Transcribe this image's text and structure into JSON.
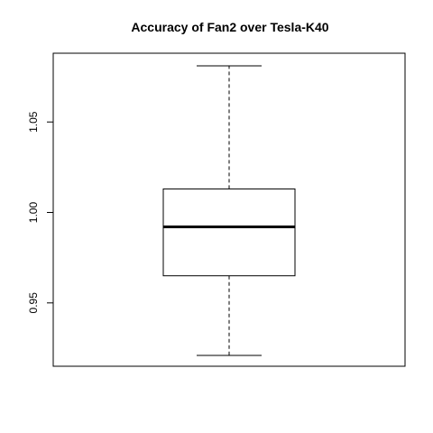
{
  "chart_data": {
    "type": "boxplot",
    "title": "Accuracy of Fan2 over Tesla-K40",
    "xlabel": "",
    "ylabel": "",
    "ylim": [
      0.915,
      1.088
    ],
    "yticks": [
      0.95,
      1.0,
      1.05
    ],
    "ytick_labels": [
      "0.95",
      "1.00",
      "1.05"
    ],
    "grid": false,
    "legend": "none",
    "box": {
      "whisker_low": 0.921,
      "q1": 0.965,
      "median": 0.992,
      "q3": 1.013,
      "whisker_high": 1.081
    },
    "colors": {
      "box_fill": "#ffffff",
      "stroke": "#000000"
    }
  }
}
